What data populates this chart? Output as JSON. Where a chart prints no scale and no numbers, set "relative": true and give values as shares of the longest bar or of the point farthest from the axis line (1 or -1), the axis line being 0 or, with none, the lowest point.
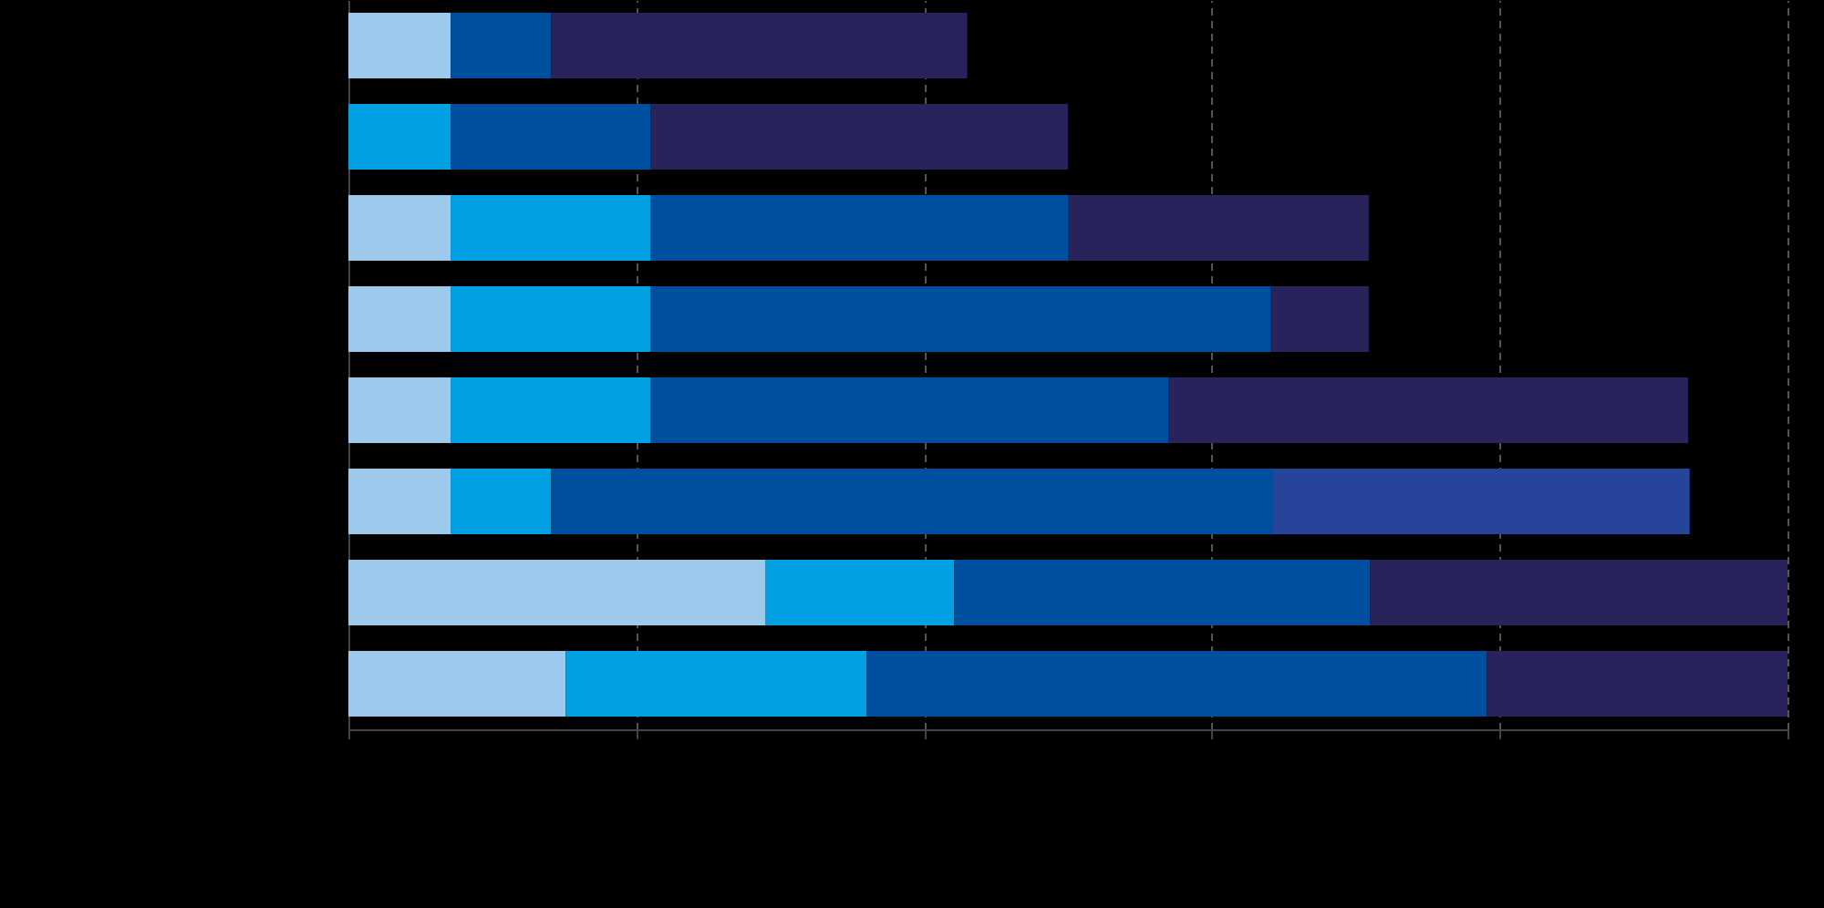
{
  "chart_data": {
    "type": "bar",
    "orientation": "horizontal",
    "stacked": true,
    "relative": true,
    "categories": [
      null,
      null,
      null,
      null,
      null,
      null,
      null,
      null
    ],
    "series": [
      {
        "color": "#9dc9ec",
        "values": [
          0.071,
          0,
          0.071,
          0.071,
          0.071,
          0.071,
          0.29,
          0.151
        ]
      },
      {
        "color": "#00a0e3",
        "values": [
          0,
          0.071,
          0.139,
          0.139,
          0.139,
          0.07,
          0.131,
          0.209
        ]
      },
      {
        "color": "#004f9f",
        "values": [
          0.07,
          0.139,
          0.29,
          0.431,
          0.36,
          0.501,
          0.289,
          0.431
        ]
      },
      {
        "color": "#29235c",
        "colors": [
          "#29235c",
          "#29235c",
          "#29235c",
          "#29235c",
          "#29235c",
          "#26449a",
          "#29235c",
          "#29235c"
        ],
        "values": [
          0.289,
          0.29,
          0.209,
          0.068,
          0.361,
          0.29,
          0.29,
          0.209
        ]
      }
    ],
    "grid": "x"
  }
}
